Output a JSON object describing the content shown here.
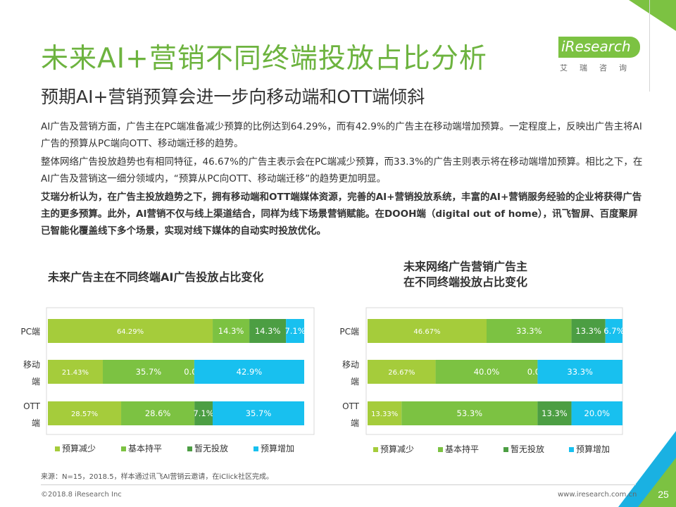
{
  "header": {
    "title": "未来AI+营销不同终端投放占比分析",
    "subtitle": "预期AI+营销预算会进一步向移动端和OTT端倾斜",
    "logo_text": "iResearch",
    "logo_sub": "艾瑞咨询"
  },
  "paragraphs": [
    "AI广告及营销方面，广告主在PC端准备减少预算的比例达到64.29%，而有42.9%的广告主在移动端增加预算。一定程度上，反映出广告主将AI广告的预算从PC端向OTT、移动端迁移的趋势。",
    "整体网络广告投放趋势也有相同特征，46.67%的广告主表示会在PC端减少预算，而33.3%的广告主则表示将在移动端增加预算。相比之下，在AI广告及营销这一细分领域内，“预算从PC向OTT、移动端迁移”的趋势更加明显。",
    "艾瑞分析认为，在广告主投放趋势之下，拥有移动端和OTT端媒体资源，完善的AI+营销投放系统，丰富的AI+营销服务经验的企业将获得广告主的更多预算。此外，AI营销不仅与线上渠道结合，同样为线下场景营销赋能。在DOOH端（digital out of home），讯飞智屏、百度聚屏已智能化覆盖线下多个场景，实现对线下媒体的自动实时投放优化。"
  ],
  "colors": {
    "accent": "#6db33f",
    "series": [
      "#a5cc3b",
      "#7cc242",
      "#4c9e43",
      "#18c0ef"
    ]
  },
  "chart_data": [
    {
      "type": "bar",
      "orientation": "horizontal",
      "stacked": true,
      "title": "未来广告主在不同终端AI广告投放占比变化",
      "categories": [
        "PC端",
        "移动端",
        "OTT端"
      ],
      "series": [
        {
          "name": "预算减少",
          "values": [
            64.29,
            21.43,
            28.57
          ],
          "labels": [
            "64.29%",
            "21.43%",
            "28.57%"
          ]
        },
        {
          "name": "基本持平",
          "values": [
            14.3,
            35.7,
            28.6
          ],
          "labels": [
            "14.3%",
            "35.7%",
            "28.6%"
          ]
        },
        {
          "name": "暂无投放",
          "values": [
            14.3,
            0.0,
            7.1
          ],
          "labels": [
            "14.3%",
            "0.0%",
            "7.1%"
          ]
        },
        {
          "name": "预算增加",
          "values": [
            7.1,
            42.9,
            35.7
          ],
          "labels": [
            "7.1%",
            "42.9%",
            "35.7%"
          ]
        }
      ],
      "legend": "bottom"
    },
    {
      "type": "bar",
      "orientation": "horizontal",
      "stacked": true,
      "title": "未来网络广告营销广告主\n在不同终端投放占比变化",
      "categories": [
        "PC端",
        "移动端",
        "OTT端"
      ],
      "series": [
        {
          "name": "预算减少",
          "values": [
            46.67,
            26.67,
            13.33
          ],
          "labels": [
            "46.67%",
            "26.67%",
            "13.33%"
          ]
        },
        {
          "name": "基本持平",
          "values": [
            33.3,
            40.0,
            53.3
          ],
          "labels": [
            "33.3%",
            "40.0%",
            "53.3%"
          ]
        },
        {
          "name": "暂无投放",
          "values": [
            13.3,
            0.0,
            13.3
          ],
          "labels": [
            "13.3%",
            "0.0%",
            "13.3%"
          ]
        },
        {
          "name": "预算增加",
          "values": [
            6.7,
            33.3,
            20.0
          ],
          "labels": [
            "6.7%",
            "33.3%",
            "20.0%"
          ]
        }
      ],
      "legend": "bottom"
    }
  ],
  "footer": {
    "source": "来源：N=15，2018.5，样本通过讯飞AI营销云邀请，在iClick社区完成。",
    "copyright": "©2018.8 iResearch Inc",
    "site": "www.iresearch.com.cn",
    "page": "25"
  }
}
